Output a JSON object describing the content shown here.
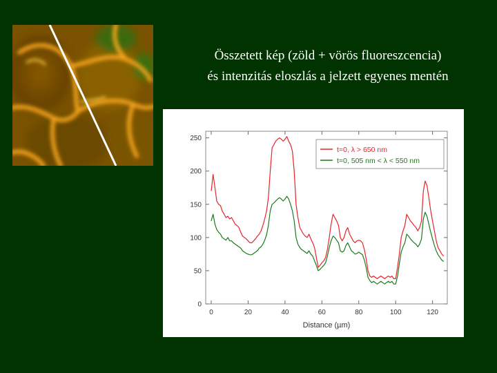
{
  "title": {
    "line1": "Összetett kép (zöld + vörös fluoreszcencia)",
    "line2": "és intenzitás eloszlás a jelzett egyenes mentén"
  },
  "colors": {
    "background": "#003300",
    "series_red": "#e8222a",
    "series_green": "#1a7a1a",
    "legend_red_text": "#e8222a",
    "legend_green_text": "#1a7a1a",
    "micrograph_base": "#6b4a00",
    "micrograph_highlight": "#f2a21a",
    "scan_line": "#ffffff"
  },
  "image": {
    "description_icon": "fluorescence-micrograph"
  },
  "chart_data": {
    "type": "line",
    "xlabel": "Distance (µm)",
    "ylabel": "",
    "xlim": [
      -3,
      128
    ],
    "ylim": [
      0,
      260
    ],
    "x_ticks": [
      "0",
      "20",
      "40",
      "60",
      "80",
      "100",
      "120"
    ],
    "x_tick_values": [
      0,
      20,
      40,
      60,
      80,
      100,
      120
    ],
    "y_ticks": [
      "0",
      "50",
      "100",
      "150",
      "200",
      "250"
    ],
    "y_tick_values": [
      0,
      50,
      100,
      150,
      200,
      250
    ],
    "grid": false,
    "legend_position": "top-right",
    "series": [
      {
        "name": "t=0, λ > 650 nm",
        "color": "#e8222a",
        "x": [
          0,
          1,
          2,
          3,
          4,
          5,
          6,
          7,
          8,
          9,
          10,
          11,
          12,
          13,
          14,
          15,
          16,
          17,
          18,
          19,
          20,
          21,
          22,
          23,
          24,
          25,
          26,
          27,
          28,
          29,
          30,
          31,
          32,
          33,
          34,
          35,
          36,
          37,
          38,
          39,
          40,
          41,
          42,
          43,
          44,
          45,
          46,
          47,
          48,
          49,
          50,
          51,
          52,
          53,
          54,
          55,
          56,
          57,
          58,
          59,
          60,
          61,
          62,
          63,
          64,
          65,
          66,
          67,
          68,
          69,
          70,
          71,
          72,
          73,
          74,
          75,
          76,
          77,
          78,
          79,
          80,
          81,
          82,
          83,
          84,
          85,
          86,
          87,
          88,
          89,
          90,
          91,
          92,
          93,
          94,
          95,
          96,
          97,
          98,
          99,
          100,
          101,
          102,
          103,
          104,
          105,
          106,
          107,
          108,
          109,
          110,
          111,
          112,
          113,
          114,
          115,
          116,
          117,
          118,
          119,
          120,
          121,
          122,
          123,
          124,
          125,
          126
        ],
        "y": [
          170,
          195,
          175,
          155,
          150,
          148,
          140,
          135,
          130,
          132,
          128,
          130,
          125,
          120,
          118,
          115,
          108,
          102,
          100,
          98,
          95,
          92,
          92,
          95,
          98,
          102,
          105,
          110,
          118,
          128,
          140,
          160,
          200,
          235,
          240,
          245,
          248,
          250,
          248,
          245,
          248,
          252,
          245,
          240,
          230,
          200,
          150,
          130,
          115,
          110,
          105,
          102,
          100,
          105,
          98,
          92,
          85,
          70,
          55,
          58,
          62,
          65,
          70,
          82,
          100,
          120,
          135,
          130,
          125,
          118,
          100,
          95,
          100,
          110,
          115,
          105,
          100,
          95,
          92,
          95,
          96,
          95,
          92,
          82,
          68,
          50,
          42,
          40,
          42,
          40,
          38,
          40,
          42,
          40,
          38,
          40,
          42,
          40,
          42,
          38,
          38,
          55,
          75,
          100,
          110,
          118,
          135,
          130,
          125,
          122,
          118,
          115,
          110,
          115,
          125,
          170,
          185,
          178,
          160,
          140,
          125,
          110,
          95,
          85,
          80,
          75,
          72
        ]
      },
      {
        "name": "t=0, 505 nm < λ < 550 nm",
        "color": "#1a7a1a",
        "x": [
          0,
          1,
          2,
          3,
          4,
          5,
          6,
          7,
          8,
          9,
          10,
          11,
          12,
          13,
          14,
          15,
          16,
          17,
          18,
          19,
          20,
          21,
          22,
          23,
          24,
          25,
          26,
          27,
          28,
          29,
          30,
          31,
          32,
          33,
          34,
          35,
          36,
          37,
          38,
          39,
          40,
          41,
          42,
          43,
          44,
          45,
          46,
          47,
          48,
          49,
          50,
          51,
          52,
          53,
          54,
          55,
          56,
          57,
          58,
          59,
          60,
          61,
          62,
          63,
          64,
          65,
          66,
          67,
          68,
          69,
          70,
          71,
          72,
          73,
          74,
          75,
          76,
          77,
          78,
          79,
          80,
          81,
          82,
          83,
          84,
          85,
          86,
          87,
          88,
          89,
          90,
          91,
          92,
          93,
          94,
          95,
          96,
          97,
          98,
          99,
          100,
          101,
          102,
          103,
          104,
          105,
          106,
          107,
          108,
          109,
          110,
          111,
          112,
          113,
          114,
          115,
          116,
          117,
          118,
          119,
          120,
          121,
          122,
          123,
          124,
          125,
          126
        ],
        "y": [
          125,
          135,
          120,
          112,
          108,
          105,
          100,
          98,
          96,
          100,
          95,
          95,
          92,
          90,
          88,
          86,
          84,
          80,
          78,
          76,
          75,
          74,
          74,
          76,
          78,
          80,
          84,
          86,
          90,
          96,
          104,
          118,
          140,
          150,
          152,
          155,
          158,
          160,
          158,
          155,
          158,
          162,
          158,
          150,
          140,
          125,
          100,
          90,
          85,
          82,
          80,
          78,
          76,
          80,
          75,
          72,
          65,
          58,
          50,
          52,
          55,
          58,
          62,
          72,
          85,
          95,
          102,
          100,
          96,
          92,
          80,
          78,
          80,
          88,
          92,
          86,
          80,
          78,
          75,
          76,
          78,
          76,
          74,
          66,
          55,
          40,
          35,
          32,
          34,
          32,
          30,
          32,
          34,
          32,
          30,
          32,
          34,
          32,
          34,
          30,
          30,
          42,
          60,
          78,
          86,
          92,
          105,
          102,
          98,
          95,
          92,
          90,
          86,
          90,
          98,
          128,
          138,
          132,
          120,
          108,
          98,
          88,
          80,
          74,
          70,
          66,
          64
        ]
      }
    ]
  }
}
